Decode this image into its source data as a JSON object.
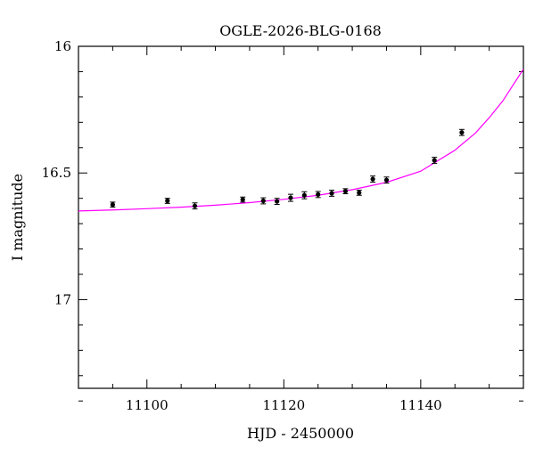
{
  "chart_data": {
    "type": "scatter",
    "title": "OGLE-2026-BLG-0168",
    "xlabel": "HJD - 2450000",
    "ylabel": "I magnitude",
    "xlim": [
      11090,
      11155
    ],
    "ylim": [
      16.0,
      17.35
    ],
    "y_inverted": true,
    "grid": false,
    "x_ticks_major": [
      11100,
      11120,
      11140
    ],
    "x_tick_labels": [
      "11100",
      "11120",
      "11140"
    ],
    "y_ticks_major": [
      16.0,
      16.5,
      17.0
    ],
    "y_tick_labels": [
      "16",
      "16.5",
      "17"
    ],
    "series": [
      {
        "kind": "points",
        "color": "#000000",
        "x": [
          11095,
          11103,
          11107,
          11114,
          11117,
          11119,
          11121,
          11123,
          11125,
          11127,
          11129,
          11131,
          11133,
          11135,
          11142,
          11146
        ],
        "y": [
          16.625,
          16.61,
          16.63,
          16.605,
          16.61,
          16.612,
          16.598,
          16.588,
          16.585,
          16.58,
          16.572,
          16.578,
          16.524,
          16.528,
          16.45,
          16.34
        ],
        "err": [
          0.01,
          0.01,
          0.012,
          0.01,
          0.012,
          0.012,
          0.014,
          0.014,
          0.012,
          0.012,
          0.01,
          0.01,
          0.012,
          0.012,
          0.012,
          0.012
        ]
      },
      {
        "kind": "line",
        "color": "#ff00ff",
        "x": [
          11090,
          11095,
          11100,
          11105,
          11110,
          11115,
          11120,
          11125,
          11130,
          11135,
          11140,
          11145,
          11148,
          11150,
          11152,
          11155
        ],
        "y": [
          16.65,
          16.646,
          16.641,
          16.635,
          16.627,
          16.617,
          16.604,
          16.588,
          16.566,
          16.537,
          16.493,
          16.41,
          16.342,
          16.282,
          16.215,
          16.09
        ]
      }
    ]
  }
}
